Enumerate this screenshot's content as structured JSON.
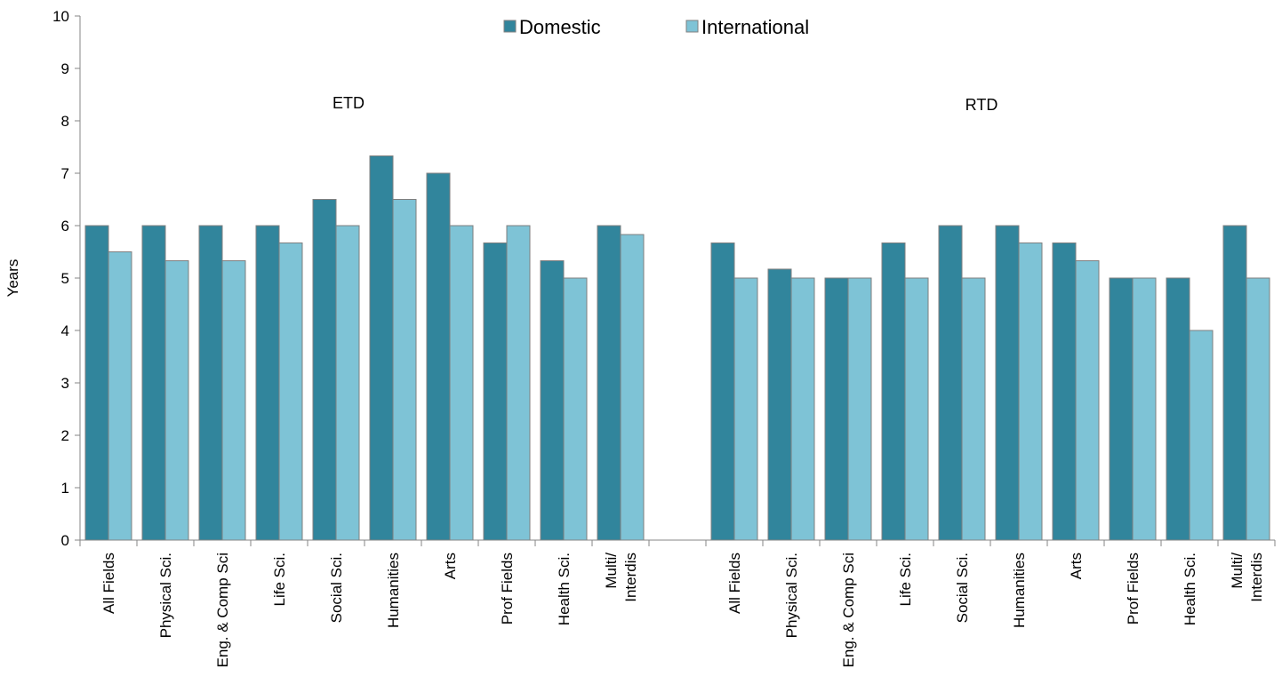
{
  "chart_data": {
    "type": "bar",
    "title": "",
    "xlabel": "",
    "ylabel": "Years",
    "ylim": [
      0,
      10
    ],
    "yticks": [
      0,
      1,
      2,
      3,
      4,
      5,
      6,
      7,
      8,
      9,
      10
    ],
    "grid": false,
    "legend_position": "top-center",
    "colors": {
      "Domestic": "#31859C",
      "International": "#7EC3D6",
      "bar_border": "#7F7F7F",
      "axis": "#868686"
    },
    "group_labels": [
      "ETD",
      "RTD"
    ],
    "categories": [
      "All Fields",
      "Physical Sci.",
      "Eng. & Comp Sci",
      "Life Sci.",
      "Social Sci.",
      "Humanities",
      "Arts",
      "Prof Fields",
      "Health Sci.",
      "Multi/\nInterdis",
      "",
      "All Fields",
      "Physical Sci.",
      "Eng. & Comp Sci",
      "Life Sci.",
      "Social Sci.",
      "Humanities",
      "Arts",
      "Prof Fields",
      "Health Sci.",
      "Multi/\nInterdis"
    ],
    "series": [
      {
        "name": "Domestic",
        "values": [
          6,
          6,
          6,
          6,
          6.5,
          7.33,
          7,
          5.67,
          5.33,
          6,
          null,
          5.67,
          5.17,
          5,
          5.67,
          6,
          6,
          5.67,
          5,
          5,
          6
        ]
      },
      {
        "name": "International",
        "values": [
          5.5,
          5.33,
          5.33,
          5.67,
          6,
          6.5,
          6,
          6,
          5,
          5.83,
          null,
          5,
          5,
          5,
          5,
          5,
          5.67,
          5.33,
          5,
          4,
          5
        ]
      }
    ]
  }
}
